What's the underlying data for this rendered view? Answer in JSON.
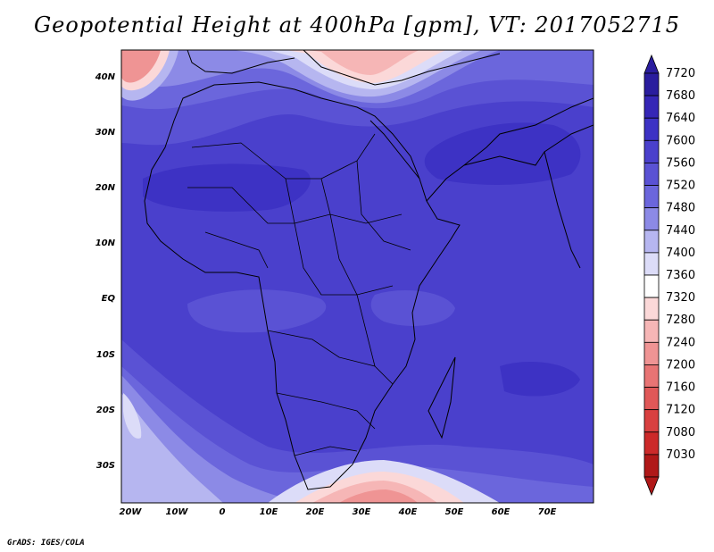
{
  "title": "Geopotential Height at 400hPa [gpm], VT: 2017052715",
  "footer": "GrADS: IGES/COLA",
  "map": {
    "lat_labels": [
      "40N",
      "30N",
      "20N",
      "10N",
      "EQ",
      "10S",
      "20S",
      "30S"
    ],
    "lon_labels": [
      "20W",
      "10W",
      "0",
      "10E",
      "20E",
      "30E",
      "40E",
      "50E",
      "60E",
      "70E"
    ],
    "lon_range": [
      -23,
      79
    ],
    "lat_range": [
      -36,
      44
    ]
  },
  "colorbar": {
    "levels": [
      "7720",
      "7680",
      "7640",
      "7600",
      "7560",
      "7520",
      "7480",
      "7440",
      "7400",
      "7360",
      "7320",
      "7280",
      "7240",
      "7200",
      "7160",
      "7120",
      "7080",
      "7030"
    ],
    "colors": [
      "#2a1d9e",
      "#3526b6",
      "#3d32c4",
      "#4a40cc",
      "#5a52d4",
      "#6b66dc",
      "#8c8ae6",
      "#b6b6f0",
      "#dcdcf8",
      "#ffffff",
      "#fbd8d8",
      "#f6b6b6",
      "#ef9494",
      "#e87474",
      "#e05858",
      "#d84040",
      "#cc2a2a",
      "#b01818"
    ]
  }
}
